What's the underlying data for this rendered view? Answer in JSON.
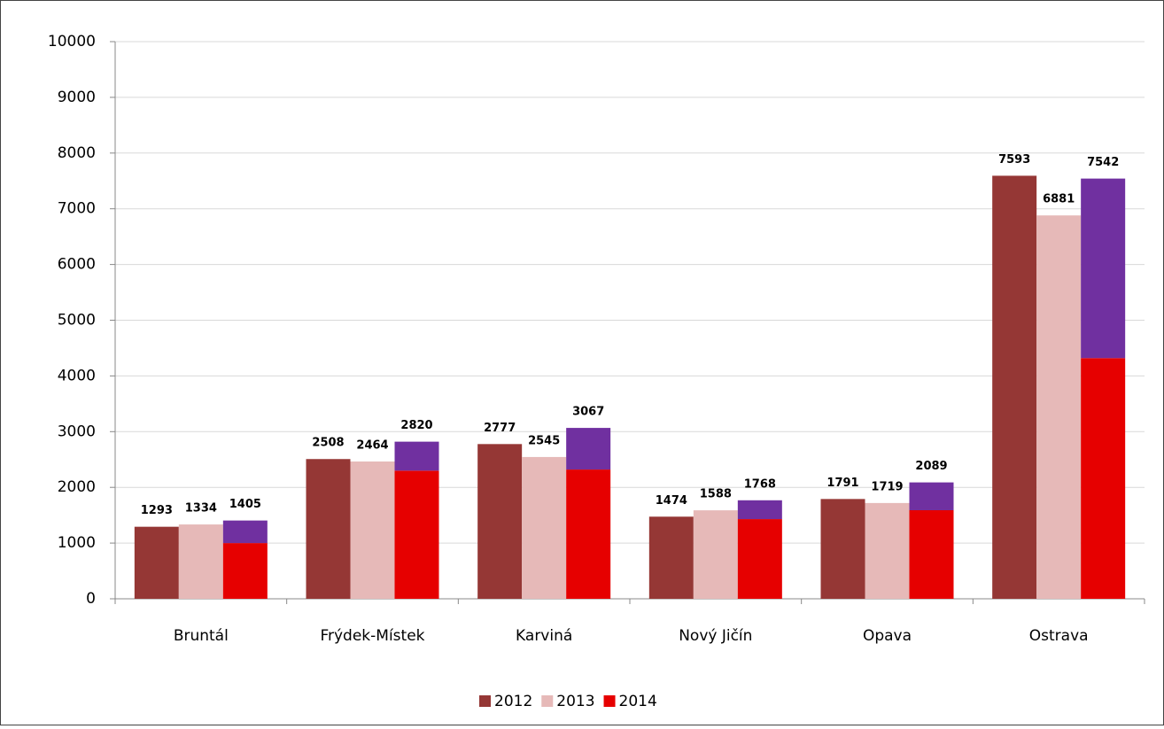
{
  "chart_data": {
    "type": "bar",
    "categories": [
      "Bruntál",
      "Frýdek-Místek",
      "Karviná",
      "Nový Jičín",
      "Opava",
      "Ostrava"
    ],
    "series": [
      {
        "name": "2012",
        "color": "#953735",
        "values": [
          1293,
          2508,
          2777,
          1474,
          1791,
          7593
        ]
      },
      {
        "name": "2013",
        "color": "#e6b9b8",
        "values": [
          1334,
          2464,
          2545,
          1588,
          1719,
          6881
        ]
      },
      {
        "name": "2014",
        "color": "#e60000",
        "values": [
          1000,
          2300,
          2320,
          1430,
          1590,
          4320
        ],
        "stack": "s2014"
      },
      {
        "color": "#7030a0",
        "values": [
          405,
          520,
          747,
          338,
          499,
          3222
        ],
        "stack": "s2014",
        "in_legend": false
      }
    ],
    "stack_totals": [
      1405,
      2820,
      3067,
      1768,
      2089,
      7542
    ],
    "ylim": [
      0,
      10000
    ],
    "yticks": [
      0,
      1000,
      2000,
      3000,
      4000,
      5000,
      6000,
      7000,
      8000,
      9000,
      10000
    ],
    "grid": true,
    "legend": "bottom"
  }
}
